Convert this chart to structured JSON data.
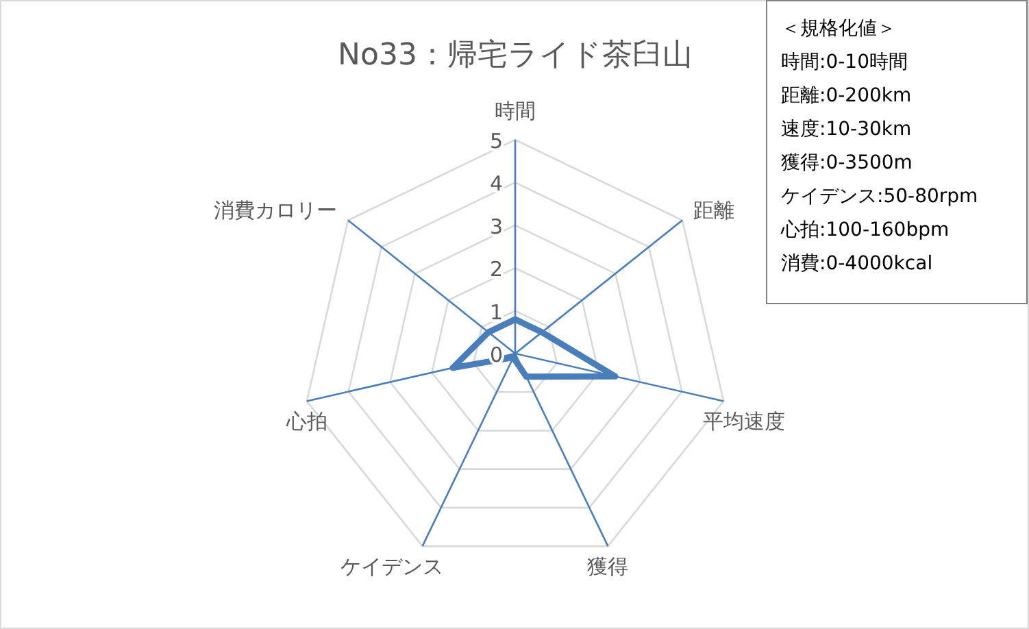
{
  "chart_data": {
    "type": "radar",
    "title": "No33：帰宅ライド茶臼山",
    "categories": [
      "時間",
      "距離",
      "平均速度",
      "獲得",
      "ケイデンス",
      "心拍",
      "消費カロリー"
    ],
    "series": [
      {
        "color": "#4a7ebb",
        "values": [
          0.8,
          0.8,
          2.4,
          0.6,
          0.1,
          1.5,
          0.8
        ]
      }
    ],
    "ylim": [
      0,
      5
    ],
    "yticks": [
      0,
      1,
      2,
      3,
      4,
      5
    ],
    "grid": true,
    "marker": "none",
    "line_style": "solid",
    "annotations": [
      "＜規格化値＞",
      "時間:0-10時間",
      "距離:0-200km",
      "速度:10-30km",
      "獲得:0-3500m",
      "ケイデンス:50-80rpm",
      "心拍:100-160bpm",
      "消費:0-4000kcal"
    ]
  }
}
